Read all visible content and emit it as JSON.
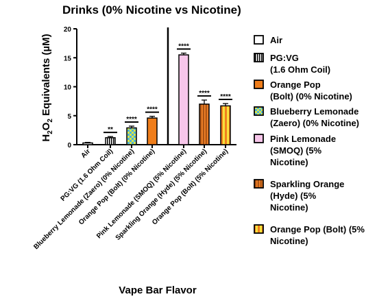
{
  "chart_data": {
    "type": "bar",
    "title": "Drinks (0% Nicotine vs Nicotine)",
    "ylabel": "H₂O₂ Equivalents (µM)",
    "ylabel_parts": [
      "H",
      "2",
      "O",
      "2",
      " Equivalents (µM)"
    ],
    "xlabel": "Vape Bar Flavor",
    "ylim": [
      0,
      20
    ],
    "yticks": [
      0,
      5,
      10,
      15,
      20
    ],
    "grid": false,
    "legend_position": "right",
    "categories": [
      "Air",
      "PG:VG (1.6 Ohm Coil)",
      "Blueberry Lemonade (Zaero) (0% Nicotine)",
      "Orange Pop (Bolt) (0% Nicotine)",
      "Pink Lemonade (SMOQ) (5% Nicotine)",
      "Sparkling Orange (Hyde) (5% Nicotine)",
      "Orange Pop (Bolt) (5% Nicotine)"
    ],
    "values": [
      0.3,
      1.2,
      2.9,
      4.6,
      15.5,
      7.0,
      6.7
    ],
    "errors": [
      0.1,
      0.2,
      0.3,
      0.3,
      0.3,
      0.7,
      0.4
    ],
    "significance": [
      "",
      "**",
      "****",
      "****",
      "****",
      "****",
      "****"
    ],
    "colors": {
      "Air": "#ffffff",
      "PG:VG": "#ffffff",
      "Blueberry Lemonade": "#4fb3d9",
      "Blueberry Lemonade stripes": "#d8e64a",
      "Orange Pop 0%": "#ef7d1a",
      "Pink Lemonade": "#f7c6ea",
      "Sparkling Orange": "#e97c25",
      "Sparkling Orange stripes": "#9a4a10",
      "Orange Pop 5%": "#f0801e",
      "Orange Pop 5% stripes": "#f6e23c"
    },
    "legend": [
      {
        "lines": [
          "Air"
        ],
        "swatch": "air"
      },
      {
        "lines": [
          "PG:VG",
          "(1.6 Ohm Coil)"
        ],
        "swatch": "pgvg"
      },
      {
        "lines": [
          "Orange Pop",
          "(Bolt) (0% Nicotine)"
        ],
        "swatch": "orange0"
      },
      {
        "lines": [
          "Blueberry Lemonade",
          "(Zaero) (0% Nicotine)"
        ],
        "swatch": "blueberry"
      },
      {
        "lines": [
          "Pink Lemonade",
          "(SMOQ) (5%",
          "Nicotine)"
        ],
        "swatch": "pink"
      },
      {
        "lines": [
          "Sparkling Orange",
          "(Hyde) (5%",
          "Nicotine)"
        ],
        "swatch": "sparkling"
      },
      {
        "lines": [
          "Orange Pop (Bolt) (5%",
          "Nicotine)"
        ],
        "swatch": "orange5"
      }
    ]
  }
}
